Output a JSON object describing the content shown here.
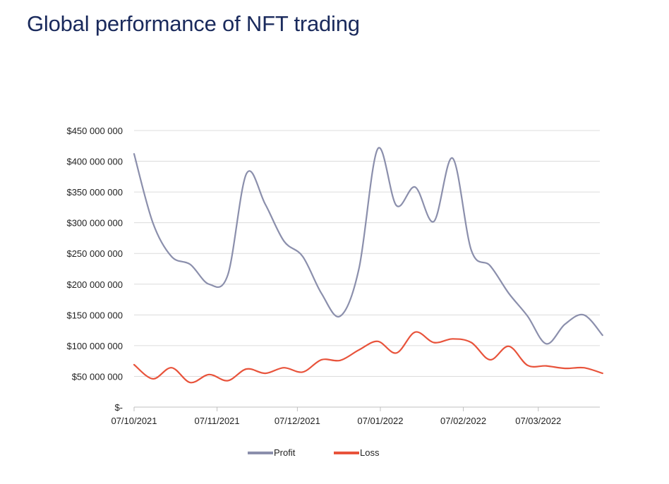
{
  "chart_data": {
    "type": "line",
    "title": "Global performance of NFT trading",
    "x_tick_labels": [
      "07/10/2021",
      "07/11/2021",
      "07/12/2021",
      "07/01/2022",
      "07/02/2022",
      "07/03/2022"
    ],
    "y_tick_labels": [
      "$-",
      "$50 000 000",
      "$100 000 000",
      "$150 000 000",
      "$200 000 000",
      "$250 000 000",
      "$300 000 000",
      "$350 000 000",
      "$400 000 000",
      "$450 000 000"
    ],
    "ylim": [
      0,
      450000000
    ],
    "y_tick_step": 50000000,
    "xlim": [
      "2021-10-07",
      "2022-03-30"
    ],
    "grid": true,
    "legend_position": "bottom",
    "series": [
      {
        "name": "Profit",
        "color": "#8b8fac",
        "points": [
          [
            "2021-10-07",
            412000000
          ],
          [
            "2021-10-14",
            300000000
          ],
          [
            "2021-10-21",
            245000000
          ],
          [
            "2021-10-28",
            232000000
          ],
          [
            "2021-11-04",
            200000000
          ],
          [
            "2021-11-11",
            215000000
          ],
          [
            "2021-11-18",
            380000000
          ],
          [
            "2021-11-25",
            330000000
          ],
          [
            "2021-12-02",
            270000000
          ],
          [
            "2021-12-09",
            245000000
          ],
          [
            "2021-12-16",
            185000000
          ],
          [
            "2021-12-23",
            148000000
          ],
          [
            "2021-12-30",
            225000000
          ],
          [
            "2022-01-06",
            420000000
          ],
          [
            "2022-01-13",
            328000000
          ],
          [
            "2022-01-20",
            358000000
          ],
          [
            "2022-01-27",
            302000000
          ],
          [
            "2022-02-03",
            405000000
          ],
          [
            "2022-02-10",
            255000000
          ],
          [
            "2022-02-17",
            230000000
          ],
          [
            "2022-02-24",
            185000000
          ],
          [
            "2022-03-03",
            148000000
          ],
          [
            "2022-03-10",
            103000000
          ],
          [
            "2022-03-17",
            135000000
          ],
          [
            "2022-03-24",
            150000000
          ],
          [
            "2022-03-31",
            117000000
          ]
        ]
      },
      {
        "name": "Loss",
        "color": "#e8533b",
        "points": [
          [
            "2021-10-07",
            69000000
          ],
          [
            "2021-10-14",
            46000000
          ],
          [
            "2021-10-21",
            64000000
          ],
          [
            "2021-10-28",
            40000000
          ],
          [
            "2021-11-04",
            53000000
          ],
          [
            "2021-11-11",
            43000000
          ],
          [
            "2021-11-18",
            62000000
          ],
          [
            "2021-11-25",
            55000000
          ],
          [
            "2021-12-02",
            64000000
          ],
          [
            "2021-12-09",
            57000000
          ],
          [
            "2021-12-16",
            77000000
          ],
          [
            "2021-12-23",
            76000000
          ],
          [
            "2021-12-30",
            93000000
          ],
          [
            "2022-01-06",
            107000000
          ],
          [
            "2022-01-13",
            88000000
          ],
          [
            "2022-01-20",
            122000000
          ],
          [
            "2022-01-27",
            105000000
          ],
          [
            "2022-02-03",
            111000000
          ],
          [
            "2022-02-10",
            105000000
          ],
          [
            "2022-02-17",
            77000000
          ],
          [
            "2022-02-24",
            99000000
          ],
          [
            "2022-03-03",
            68000000
          ],
          [
            "2022-03-10",
            67000000
          ],
          [
            "2022-03-17",
            63000000
          ],
          [
            "2022-03-24",
            64000000
          ],
          [
            "2022-03-31",
            55000000
          ]
        ]
      }
    ]
  }
}
